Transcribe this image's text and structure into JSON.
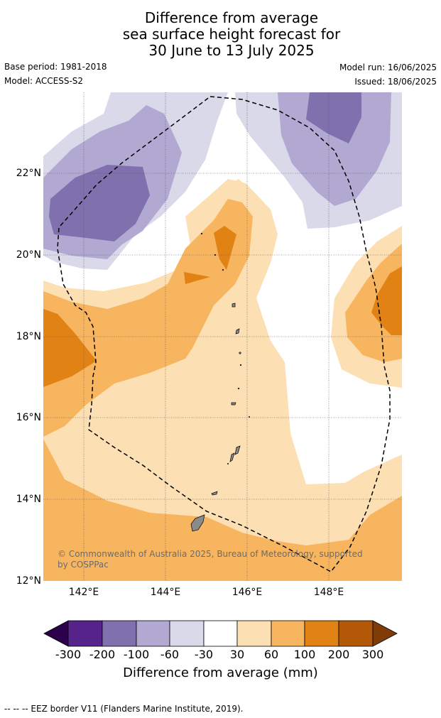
{
  "title": {
    "line1": "Difference from average",
    "line2": "sea surface height forecast for",
    "line3": "30 June to 13 July 2025"
  },
  "meta": {
    "base_period": "Base period: 1981-2018",
    "model": "Model: ACCESS-S2",
    "model_run": "Model run: 16/06/2025",
    "issued": "Issued: 18/06/2025"
  },
  "map": {
    "lat_labels": [
      "22°N",
      "20°N",
      "18°N",
      "16°N",
      "14°N",
      "12°N"
    ],
    "lon_labels": [
      "142°E",
      "144°E",
      "146°E",
      "148°E"
    ],
    "copyright": "© Commonwealth of Australia 2025, Bureau of Meteorology, supported by COSPPac",
    "copyright_line1": "© Commonwealth of Australia 2025, Bureau of Meteorology, supported",
    "copyright_line2": "by COSPPac"
  },
  "colorbar": {
    "ticks": [
      "-300",
      "-200",
      "-100",
      "-60",
      "-30",
      "30",
      "60",
      "100",
      "200",
      "300"
    ],
    "colors": [
      "#55238a",
      "#8170ae",
      "#b1a9d2",
      "#d9d9ea",
      "#ffffff",
      "#fddfb4",
      "#f8b560",
      "#e08214",
      "#b35806"
    ],
    "under_color": "#2d004b",
    "over_color": "#7f3b08",
    "label": "Difference from average (mm)"
  },
  "footnote": "--  --  -- EEZ border V11 (Flanders Marine Institute, 2019)."
}
